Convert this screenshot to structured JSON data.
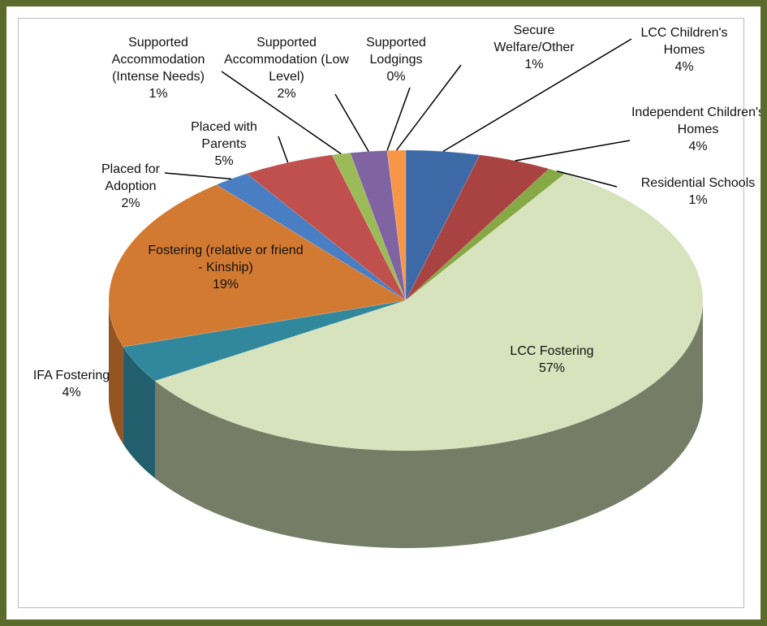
{
  "chart_data": {
    "type": "pie",
    "categories": [
      "LCC Children's Homes",
      "Independent Children's Homes",
      "Residential Schools",
      "LCC Fostering",
      "IFA Fostering",
      "Fostering (relative or friend - Kinship)",
      "Placed for Adoption",
      "Placed with Parents",
      "Supported Accommodation (Intense Needs)",
      "Supported Accommodation (Low Level)",
      "Supported Lodgings",
      "Secure Welfare/Other"
    ],
    "values": [
      4,
      4,
      1,
      57,
      4,
      19,
      2,
      5,
      1,
      2,
      0,
      1
    ],
    "value_labels": [
      "4%",
      "4%",
      "1%",
      "57%",
      "4%",
      "19%",
      "2%",
      "5%",
      "1%",
      "2%",
      "0%",
      "1%"
    ],
    "colors": [
      "#3d6aa6",
      "#a94341",
      "#86a845",
      "#d6e3bc",
      "#31879c",
      "#d37a32",
      "#4a7ec2",
      "#c0504d",
      "#9bbb59",
      "#8064a2",
      "#4bacc6",
      "#f79646"
    ]
  }
}
